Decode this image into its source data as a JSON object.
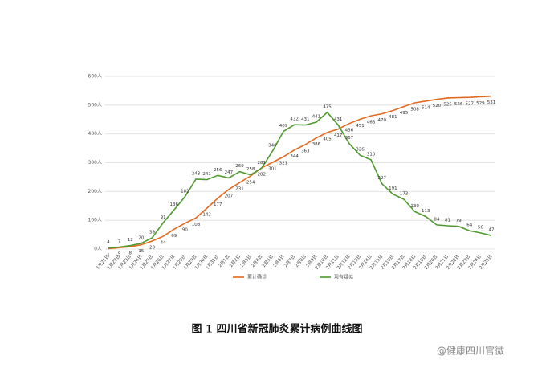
{
  "chart_data": {
    "type": "line",
    "categories": [
      "1月21日",
      "1月22日",
      "1月23日",
      "1月24日",
      "1月25日",
      "1月26日",
      "1月27日",
      "1月28日",
      "1月29日",
      "1月30日",
      "1月31日",
      "2月1日",
      "2月2日",
      "2月3日",
      "2月4日",
      "2月5日",
      "2月6日",
      "2月7日",
      "2月8日",
      "2月9日",
      "2月10日",
      "2月11日",
      "2月12日",
      "2月13日",
      "2月14日",
      "2月15日",
      "2月16日",
      "2月17日",
      "2月18日",
      "2月19日",
      "2月20日",
      "2月21日",
      "2月22日",
      "2月23日",
      "2月24日",
      "2月25日"
    ],
    "series": [
      {
        "name": "累计确诊",
        "color": "#e2691f",
        "values": [
          1,
          5,
          8,
          15,
          28,
          44,
          69,
          90,
          108,
          142,
          177,
          207,
          231,
          254,
          282,
          301,
          321,
          344,
          363,
          386,
          405,
          417,
          436,
          451,
          463,
          470,
          481,
          495,
          508,
          514,
          520,
          525,
          526,
          527,
          529,
          531
        ]
      },
      {
        "name": "现有疑似",
        "color": "#4e9a2e",
        "values": [
          4,
          7,
          12,
          20,
          39,
          91,
          136,
          182,
          243,
          241,
          256,
          247,
          269,
          258,
          281,
          340,
          409,
          432,
          431,
          441,
          475,
          431,
          367,
          326,
          310,
          227,
          191,
          173,
          130,
          113,
          84,
          81,
          79,
          64,
          56,
          47
        ]
      }
    ],
    "ylim": [
      0,
      600
    ],
    "yticks": [
      {
        "value": 0,
        "label": "0人"
      },
      {
        "value": 100,
        "label": "100人"
      },
      {
        "value": 200,
        "label": "200人"
      },
      {
        "value": 300,
        "label": "300人"
      },
      {
        "value": 400,
        "label": "400人"
      },
      {
        "value": 500,
        "label": "500人"
      },
      {
        "value": 600,
        "label": "600人"
      }
    ],
    "grid": true,
    "caption": "图 1    四川省新冠肺炎累计病例曲线图",
    "watermark": "@健康四川官微"
  }
}
